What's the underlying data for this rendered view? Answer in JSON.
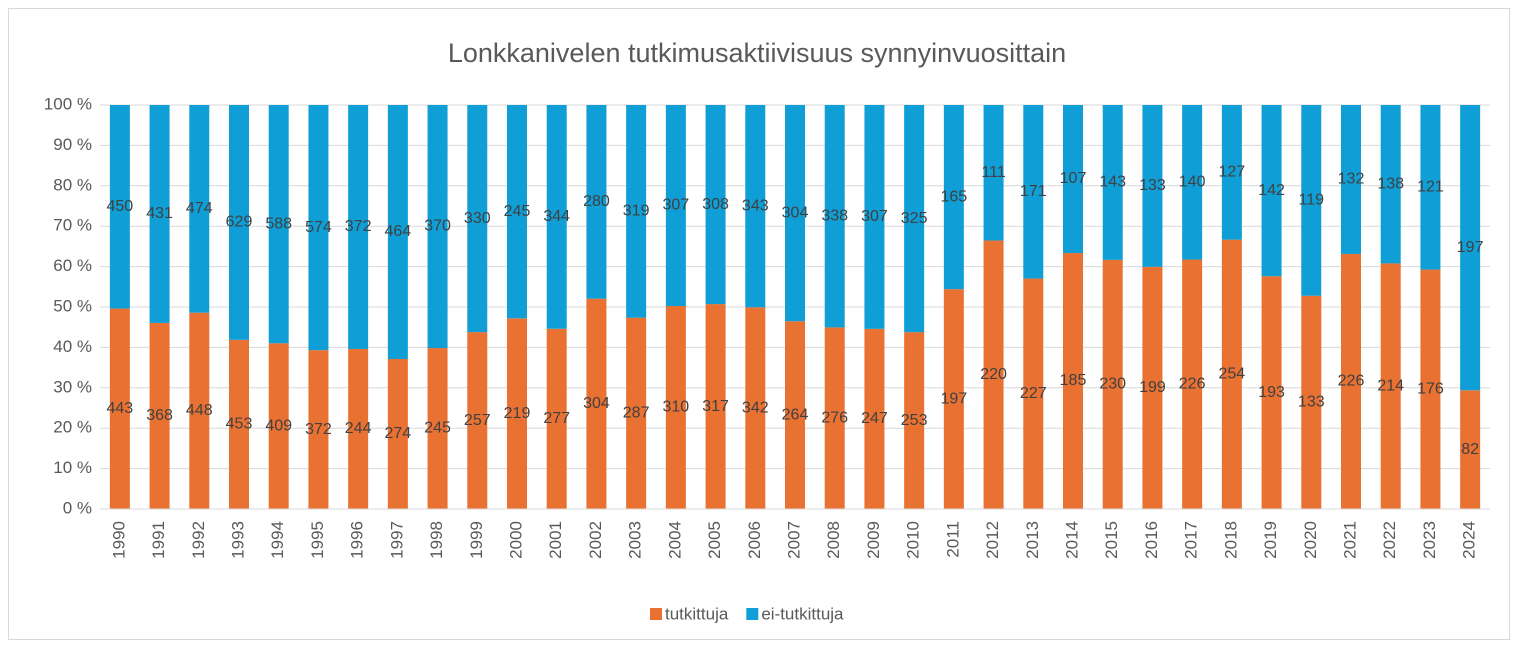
{
  "chart_data": {
    "type": "stacked_bar_100",
    "title": "Lonkkanivelen tutkimusaktiivisuus synnyinvuosittain",
    "categories": [
      "1990",
      "1991",
      "1992",
      "1993",
      "1994",
      "1995",
      "1996",
      "1997",
      "1998",
      "1999",
      "2000",
      "2001",
      "2002",
      "2003",
      "2004",
      "2005",
      "2006",
      "2007",
      "2008",
      "2009",
      "2010",
      "2011",
      "2012",
      "2013",
      "2014",
      "2015",
      "2016",
      "2017",
      "2018",
      "2019",
      "2020",
      "2021",
      "2022",
      "2023",
      "2024"
    ],
    "series": [
      {
        "name": "tutkittuja",
        "color": "#e97132",
        "values": [
          443,
          368,
          448,
          453,
          409,
          372,
          244,
          274,
          245,
          257,
          219,
          277,
          304,
          287,
          310,
          317,
          342,
          264,
          276,
          247,
          253,
          197,
          220,
          227,
          185,
          230,
          199,
          226,
          254,
          193,
          133,
          226,
          214,
          176,
          82
        ]
      },
      {
        "name": "ei-tutkittuja",
        "color": "#0f9ed5",
        "values": [
          450,
          431,
          474,
          629,
          588,
          574,
          372,
          464,
          370,
          330,
          245,
          344,
          280,
          319,
          307,
          308,
          343,
          304,
          338,
          307,
          325,
          165,
          111,
          171,
          107,
          143,
          133,
          140,
          127,
          142,
          119,
          132,
          138,
          121,
          197
        ]
      }
    ],
    "ylim": [
      0,
      100
    ],
    "yticks": [
      {
        "value": 0,
        "label": "0 %"
      },
      {
        "value": 10,
        "label": "10 %"
      },
      {
        "value": 20,
        "label": "20 %"
      },
      {
        "value": 30,
        "label": "30 %"
      },
      {
        "value": 40,
        "label": "40 %"
      },
      {
        "value": 50,
        "label": "50 %"
      },
      {
        "value": 60,
        "label": "60 %"
      },
      {
        "value": 70,
        "label": "70 %"
      },
      {
        "value": 80,
        "label": "80 %"
      },
      {
        "value": 90,
        "label": "90 %"
      },
      {
        "value": 100,
        "label": "100 %"
      }
    ],
    "grid": true,
    "legend": "bottom"
  }
}
